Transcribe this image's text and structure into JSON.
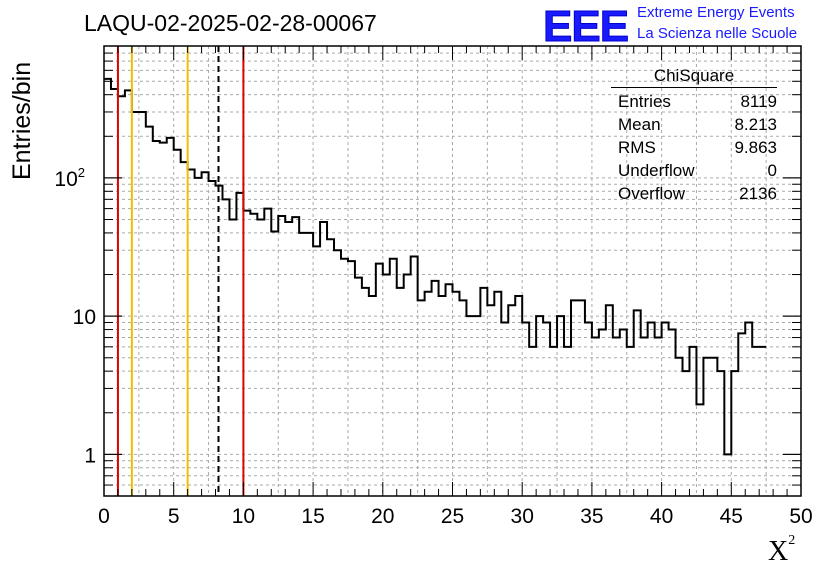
{
  "header": {
    "title": "LAQU-02-2025-02-28-00067",
    "logo_text": "EEE",
    "org_line1": "Extreme Energy Events",
    "org_line2": "La Scienza nelle Scuole"
  },
  "stats_box": {
    "name": "ChiSquare",
    "rows": [
      {
        "label": "Entries",
        "value": "8119"
      },
      {
        "label": "Mean",
        "value": "8.213"
      },
      {
        "label": "RMS",
        "value": "9.863"
      },
      {
        "label": "Underflow",
        "value": "0"
      },
      {
        "label": "Overflow",
        "value": "2136"
      }
    ]
  },
  "chart_data": {
    "type": "histogram",
    "title": "LAQU-02-2025-02-28-00067",
    "xlabel": "X",
    "xlabel_sup": "2",
    "ylabel": "Entries/bin",
    "xlim": [
      0,
      50
    ],
    "ylim": [
      0.5,
      900
    ],
    "yscale": "log",
    "grid": true,
    "bin_width": 0.5,
    "x_ticks": [
      "0",
      "5",
      "10",
      "15",
      "20",
      "25",
      "30",
      "35",
      "40",
      "45",
      "50"
    ],
    "y_ticks": [
      {
        "value": 1,
        "label": "1"
      },
      {
        "value": 10,
        "label": "10"
      },
      {
        "value": 100,
        "label": "10",
        "sup": "2"
      }
    ],
    "values": [
      520,
      440,
      390,
      430,
      300,
      300,
      235,
      185,
      180,
      195,
      160,
      130,
      115,
      100,
      110,
      95,
      88,
      70,
      50,
      78,
      58,
      55,
      50,
      60,
      41,
      53,
      48,
      52,
      40,
      40,
      32,
      48,
      36,
      30,
      26,
      25,
      19,
      16,
      14,
      24,
      20,
      26,
      16,
      20,
      27,
      13,
      15,
      18,
      14,
      17,
      15,
      13,
      10,
      10,
      16,
      12,
      15,
      9,
      12,
      14,
      9,
      6,
      10,
      9,
      6,
      10,
      6,
      13,
      13,
      9,
      7,
      8,
      12,
      7,
      8,
      6,
      11,
      7,
      9,
      7,
      9,
      8,
      5,
      4,
      6,
      2.3,
      5,
      5,
      4,
      1,
      4,
      7.5,
      9,
      6,
      6
    ],
    "lines": [
      {
        "x": 1,
        "color": "#e00000",
        "style": "solid"
      },
      {
        "x": 2,
        "color": "#f0c000",
        "style": "solid"
      },
      {
        "x": 6,
        "color": "#f0c000",
        "style": "solid"
      },
      {
        "x": 8.213,
        "color": "#000000",
        "style": "dashed"
      },
      {
        "x": 10,
        "color": "#e00000",
        "style": "solid"
      }
    ]
  }
}
